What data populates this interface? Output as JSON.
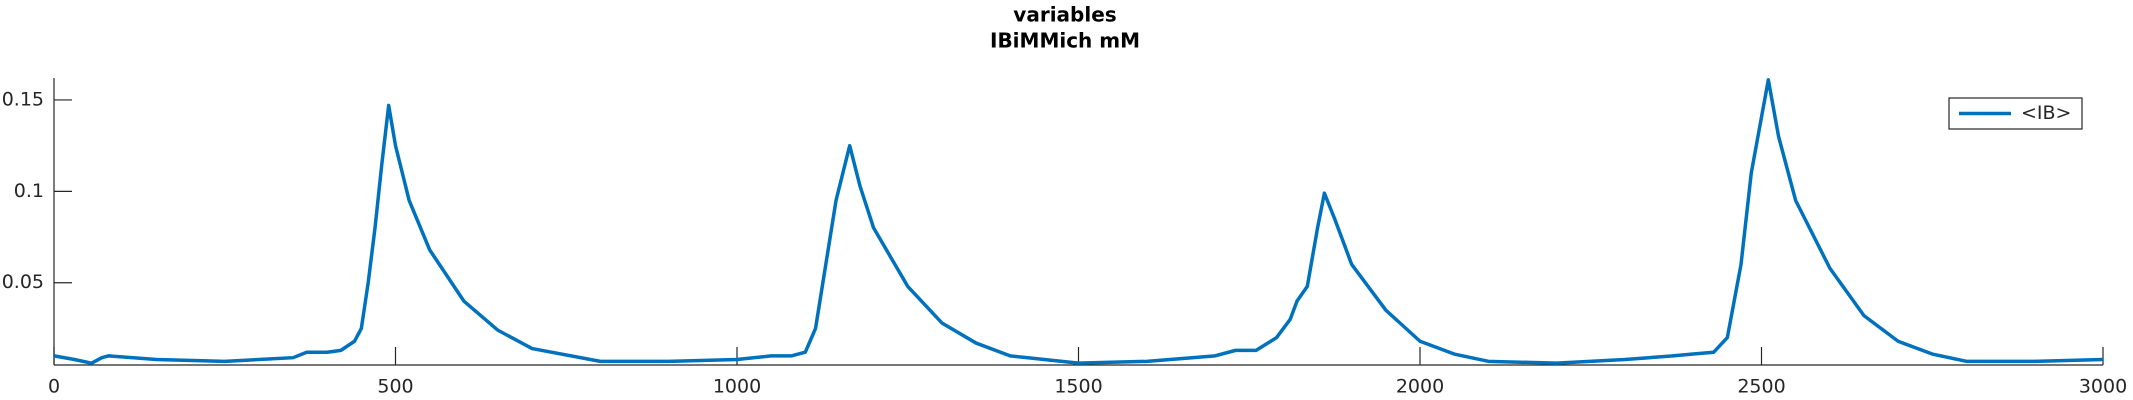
{
  "chart_data": {
    "type": "line",
    "title": "variables",
    "subtitle": "IBiMMich mM",
    "x": [
      0,
      30,
      55,
      70,
      80,
      150,
      250,
      350,
      370,
      400,
      420,
      440,
      450,
      460,
      470,
      480,
      490,
      500,
      520,
      550,
      600,
      650,
      700,
      800,
      900,
      1000,
      1050,
      1080,
      1100,
      1115,
      1130,
      1145,
      1165,
      1180,
      1200,
      1250,
      1300,
      1350,
      1400,
      1500,
      1600,
      1700,
      1730,
      1760,
      1790,
      1810,
      1820,
      1835,
      1850,
      1860,
      1875,
      1900,
      1950,
      2000,
      2050,
      2100,
      2200,
      2300,
      2370,
      2400,
      2430,
      2450,
      2470,
      2485,
      2510,
      2525,
      2550,
      2600,
      2650,
      2700,
      2750,
      2800,
      2900,
      3000
    ],
    "series": [
      {
        "name": "<IB>",
        "color": "#0072bd",
        "values": [
          0.01,
          0.008,
          0.006,
          0.009,
          0.01,
          0.008,
          0.007,
          0.009,
          0.012,
          0.012,
          0.013,
          0.018,
          0.025,
          0.05,
          0.08,
          0.115,
          0.147,
          0.125,
          0.095,
          0.068,
          0.04,
          0.024,
          0.014,
          0.007,
          0.007,
          0.008,
          0.01,
          0.01,
          0.012,
          0.025,
          0.06,
          0.095,
          0.125,
          0.103,
          0.08,
          0.048,
          0.028,
          0.017,
          0.01,
          0.006,
          0.007,
          0.01,
          0.013,
          0.013,
          0.02,
          0.03,
          0.04,
          0.048,
          0.08,
          0.099,
          0.085,
          0.06,
          0.035,
          0.018,
          0.011,
          0.007,
          0.006,
          0.008,
          0.01,
          0.011,
          0.012,
          0.02,
          0.06,
          0.11,
          0.161,
          0.13,
          0.095,
          0.058,
          0.032,
          0.018,
          0.011,
          0.007,
          0.007,
          0.008
        ]
      }
    ],
    "xlim": [
      0,
      3000
    ],
    "xticks": [
      0,
      500,
      1000,
      1500,
      2000,
      2500,
      3000
    ],
    "ylim": [
      0.005,
      0.162
    ],
    "yticks": [
      0.05,
      0.1,
      0.15
    ],
    "legend": "top-right"
  }
}
